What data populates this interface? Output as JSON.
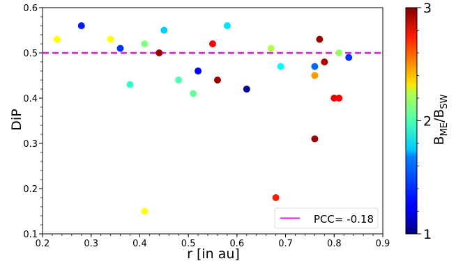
{
  "chart_data": {
    "type": "scatter",
    "title": "",
    "xlabel": "r [in au]",
    "ylabel": "DiP",
    "xlim": [
      0.2,
      0.9
    ],
    "ylim": [
      0.1,
      0.6
    ],
    "x_ticks": [
      0.2,
      0.3,
      0.4,
      0.5,
      0.6,
      0.7,
      0.8,
      0.9
    ],
    "x_tick_labels": [
      "0.2",
      "0.3",
      "0.4",
      "0.5",
      "0.6",
      "0.7",
      "0.8",
      "0.9"
    ],
    "y_ticks": [
      0.1,
      0.2,
      0.3,
      0.4,
      0.5,
      0.6
    ],
    "y_tick_labels": [
      "0.1",
      "0.2",
      "0.3",
      "0.4",
      "0.5",
      "0.6"
    ],
    "grid": false,
    "reference_line": {
      "y": 0.5,
      "color": "#ee12ee",
      "style": "dashed"
    },
    "annotation": {
      "text": "PCC= -0.18",
      "placement": "lower-right"
    },
    "colorbar": {
      "label_main": "B",
      "label_sub1": "ME",
      "label_slash": "/B",
      "label_sub2": "SW",
      "min": 1,
      "max": 3,
      "ticks": [
        1,
        2,
        3
      ],
      "tick_labels": [
        "1",
        "2",
        "3"
      ],
      "colormap": "jet"
    },
    "points": [
      {
        "x": 0.23,
        "y": 0.53,
        "c": 2.25
      },
      {
        "x": 0.28,
        "y": 0.56,
        "c": 1.3
      },
      {
        "x": 0.34,
        "y": 0.53,
        "c": 2.25
      },
      {
        "x": 0.36,
        "y": 0.51,
        "c": 1.35
      },
      {
        "x": 0.38,
        "y": 0.43,
        "c": 1.85
      },
      {
        "x": 0.41,
        "y": 0.52,
        "c": 2.0
      },
      {
        "x": 0.41,
        "y": 0.15,
        "c": 2.25
      },
      {
        "x": 0.44,
        "y": 0.5,
        "c": 2.95
      },
      {
        "x": 0.45,
        "y": 0.55,
        "c": 1.65
      },
      {
        "x": 0.48,
        "y": 0.44,
        "c": 1.9
      },
      {
        "x": 0.51,
        "y": 0.41,
        "c": 1.95
      },
      {
        "x": 0.52,
        "y": 0.46,
        "c": 1.25
      },
      {
        "x": 0.55,
        "y": 0.52,
        "c": 2.75
      },
      {
        "x": 0.56,
        "y": 0.44,
        "c": 2.95
      },
      {
        "x": 0.58,
        "y": 0.56,
        "c": 1.7
      },
      {
        "x": 0.62,
        "y": 0.42,
        "c": 1.05
      },
      {
        "x": 0.67,
        "y": 0.51,
        "c": 2.1
      },
      {
        "x": 0.68,
        "y": 0.18,
        "c": 2.7
      },
      {
        "x": 0.69,
        "y": 0.47,
        "c": 1.75
      },
      {
        "x": 0.76,
        "y": 0.47,
        "c": 1.45
      },
      {
        "x": 0.76,
        "y": 0.45,
        "c": 2.45
      },
      {
        "x": 0.76,
        "y": 0.31,
        "c": 2.95
      },
      {
        "x": 0.77,
        "y": 0.53,
        "c": 2.95
      },
      {
        "x": 0.78,
        "y": 0.48,
        "c": 2.9
      },
      {
        "x": 0.8,
        "y": 0.4,
        "c": 2.8
      },
      {
        "x": 0.81,
        "y": 0.4,
        "c": 2.75
      },
      {
        "x": 0.81,
        "y": 0.5,
        "c": 2.05
      },
      {
        "x": 0.83,
        "y": 0.49,
        "c": 1.35
      }
    ]
  }
}
